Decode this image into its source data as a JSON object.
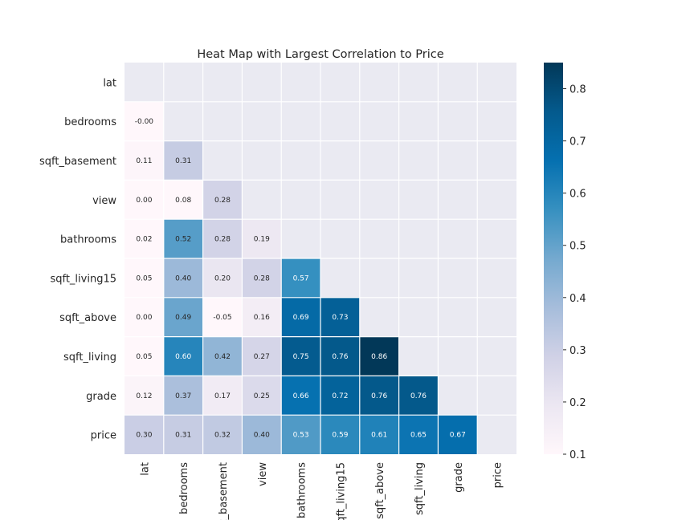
{
  "chart_data": {
    "type": "heatmap",
    "title": "Heat Map with Largest Correlation to Price",
    "xlabel": "",
    "ylabel": "",
    "labels": [
      "lat",
      "bedrooms",
      "sqft_basement",
      "view",
      "bathrooms",
      "sqft_living15",
      "sqft_above",
      "sqft_living",
      "grade",
      "price"
    ],
    "mask": "lower-triangle (diagonal and upper triangle hidden)",
    "values": [
      [
        null,
        null,
        null,
        null,
        null,
        null,
        null,
        null,
        null,
        null
      ],
      [
        -0.0,
        null,
        null,
        null,
        null,
        null,
        null,
        null,
        null,
        null
      ],
      [
        0.11,
        0.31,
        null,
        null,
        null,
        null,
        null,
        null,
        null,
        null
      ],
      [
        0.0,
        0.08,
        0.28,
        null,
        null,
        null,
        null,
        null,
        null,
        null
      ],
      [
        0.02,
        0.52,
        0.28,
        0.19,
        null,
        null,
        null,
        null,
        null,
        null
      ],
      [
        0.05,
        0.4,
        0.2,
        0.28,
        0.57,
        null,
        null,
        null,
        null,
        null
      ],
      [
        0.0,
        0.49,
        -0.05,
        0.16,
        0.69,
        0.73,
        null,
        null,
        null,
        null
      ],
      [
        0.05,
        0.6,
        0.42,
        0.27,
        0.75,
        0.76,
        0.86,
        null,
        null,
        null
      ],
      [
        0.12,
        0.37,
        0.17,
        0.25,
        0.66,
        0.72,
        0.76,
        0.76,
        null,
        null
      ],
      [
        0.3,
        0.31,
        0.32,
        0.4,
        0.53,
        0.59,
        0.61,
        0.65,
        0.67,
        null
      ]
    ],
    "value_labels": [
      [
        null,
        null,
        null,
        null,
        null,
        null,
        null,
        null,
        null,
        null
      ],
      [
        "-0.00",
        null,
        null,
        null,
        null,
        null,
        null,
        null,
        null,
        null
      ],
      [
        "0.11",
        "0.31",
        null,
        null,
        null,
        null,
        null,
        null,
        null,
        null
      ],
      [
        "0.00",
        "0.08",
        "0.28",
        null,
        null,
        null,
        null,
        null,
        null,
        null
      ],
      [
        "0.02",
        "0.52",
        "0.28",
        "0.19",
        null,
        null,
        null,
        null,
        null,
        null
      ],
      [
        "0.05",
        "0.40",
        "0.20",
        "0.28",
        "0.57",
        null,
        null,
        null,
        null,
        null
      ],
      [
        "0.00",
        "0.49",
        "-0.05",
        "0.16",
        "0.69",
        "0.73",
        null,
        null,
        null,
        null
      ],
      [
        "0.05",
        "0.60",
        "0.42",
        "0.27",
        "0.75",
        "0.76",
        "0.86",
        null,
        null,
        null
      ],
      [
        "0.12",
        "0.37",
        "0.17",
        "0.25",
        "0.66",
        "0.72",
        "0.76",
        "0.76",
        null,
        null
      ],
      [
        "0.30",
        "0.31",
        "0.32",
        "0.40",
        "0.53",
        "0.59",
        "0.61",
        "0.65",
        "0.67",
        null
      ]
    ],
    "colormap": "PuBu",
    "colormap_stops": [
      "#fff7fb",
      "#ece7f2",
      "#d0d1e6",
      "#a6bddb",
      "#74a9cf",
      "#3690c0",
      "#0570b0",
      "#045a8d",
      "#023858"
    ],
    "vmin": 0.1,
    "vmax": 0.85,
    "colorbar_ticks": [
      "0.1",
      "0.2",
      "0.3",
      "0.4",
      "0.5",
      "0.6",
      "0.7",
      "0.8"
    ],
    "colorbar_tick_values": [
      0.1,
      0.2,
      0.3,
      0.4,
      0.5,
      0.6,
      0.7,
      0.8
    ],
    "background_color": "#eaeaf2",
    "grid": true
  }
}
